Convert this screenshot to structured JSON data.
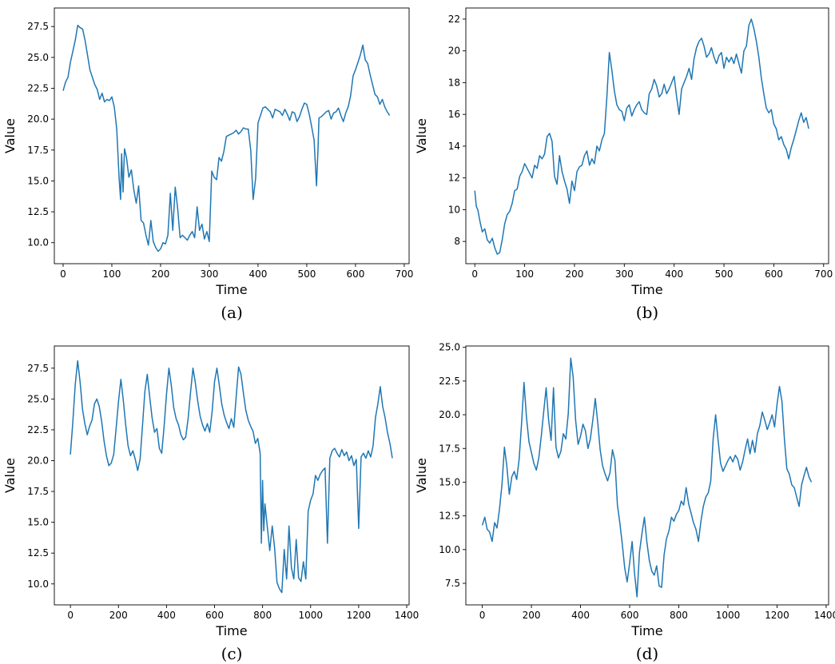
{
  "chart_data": [
    {
      "type": "line",
      "caption": "(a)",
      "xlabel": "Time",
      "ylabel": "Value",
      "xlim": [
        -18,
        710
      ],
      "ylim": [
        8.3,
        29.0
      ],
      "xticks": [
        0,
        100,
        200,
        300,
        400,
        500,
        600,
        700
      ],
      "yticks": [
        10.0,
        12.5,
        15.0,
        17.5,
        20.0,
        22.5,
        25.0,
        27.5
      ],
      "series_color": "#1f77b4",
      "x": [
        0,
        5,
        10,
        15,
        20,
        25,
        30,
        35,
        40,
        45,
        50,
        55,
        60,
        65,
        70,
        75,
        80,
        85,
        90,
        95,
        100,
        105,
        110,
        115,
        118,
        120,
        123,
        126,
        130,
        135,
        140,
        145,
        150,
        155,
        160,
        165,
        170,
        175,
        180,
        185,
        190,
        195,
        200,
        205,
        210,
        215,
        220,
        225,
        230,
        235,
        240,
        245,
        250,
        255,
        260,
        265,
        270,
        275,
        280,
        285,
        290,
        295,
        300,
        305,
        310,
        315,
        320,
        325,
        330,
        335,
        340,
        345,
        350,
        355,
        360,
        365,
        370,
        375,
        380,
        385,
        390,
        395,
        400,
        405,
        410,
        415,
        420,
        425,
        430,
        435,
        440,
        445,
        450,
        455,
        460,
        465,
        470,
        475,
        480,
        485,
        490,
        495,
        500,
        505,
        510,
        515,
        520,
        523,
        525,
        530,
        535,
        540,
        545,
        550,
        555,
        560,
        565,
        570,
        575,
        580,
        585,
        590,
        595,
        600,
        605,
        610,
        615,
        620,
        625,
        630,
        635,
        640,
        645,
        650,
        655,
        660,
        665,
        670
      ],
      "y": [
        22.3,
        23.0,
        23.4,
        24.6,
        25.5,
        26.4,
        27.6,
        27.4,
        27.3,
        26.4,
        25.2,
        24.0,
        23.4,
        22.8,
        22.4,
        21.6,
        22.1,
        21.4,
        21.6,
        21.5,
        21.8,
        21.0,
        19.2,
        15.2,
        13.5,
        17.2,
        14.1,
        17.6,
        16.9,
        15.3,
        15.9,
        14.3,
        13.2,
        14.6,
        11.8,
        11.6,
        10.6,
        9.8,
        11.8,
        10.1,
        9.6,
        9.3,
        9.5,
        10.0,
        9.9,
        10.6,
        14.0,
        11.0,
        14.5,
        12.8,
        10.4,
        10.6,
        10.4,
        10.2,
        10.6,
        10.9,
        10.4,
        12.9,
        11.0,
        11.5,
        10.3,
        10.9,
        10.1,
        15.8,
        15.3,
        15.1,
        16.9,
        16.6,
        17.4,
        18.6,
        18.7,
        18.8,
        18.9,
        19.1,
        18.8,
        19.0,
        19.3,
        19.2,
        19.2,
        17.5,
        13.5,
        15.2,
        19.7,
        20.3,
        20.9,
        21.0,
        20.8,
        20.6,
        20.1,
        20.8,
        20.7,
        20.6,
        20.3,
        20.8,
        20.4,
        19.9,
        20.6,
        20.5,
        19.8,
        20.2,
        20.8,
        21.3,
        21.2,
        20.4,
        19.4,
        18.3,
        14.6,
        17.6,
        20.1,
        20.2,
        20.4,
        20.6,
        20.7,
        20.0,
        20.5,
        20.6,
        20.9,
        20.3,
        19.8,
        20.5,
        21.0,
        21.9,
        23.5,
        24.0,
        24.6,
        25.2,
        26.0,
        24.8,
        24.5,
        23.6,
        22.8,
        22.0,
        21.8,
        21.2,
        21.6,
        21.0,
        20.6,
        20.3
      ]
    },
    {
      "type": "line",
      "caption": "(b)",
      "xlabel": "Time",
      "ylabel": "Value",
      "xlim": [
        -18,
        710
      ],
      "ylim": [
        6.6,
        22.7
      ],
      "xticks": [
        0,
        100,
        200,
        300,
        400,
        500,
        600,
        700
      ],
      "yticks": [
        8,
        10,
        12,
        14,
        16,
        18,
        20,
        22
      ],
      "series_color": "#1f77b4",
      "x": [
        0,
        3,
        6,
        10,
        15,
        20,
        25,
        30,
        35,
        40,
        45,
        50,
        55,
        60,
        65,
        70,
        75,
        80,
        85,
        90,
        95,
        100,
        105,
        110,
        115,
        120,
        125,
        130,
        135,
        140,
        145,
        150,
        155,
        160,
        165,
        170,
        175,
        180,
        185,
        190,
        195,
        200,
        205,
        210,
        215,
        220,
        225,
        230,
        235,
        240,
        245,
        250,
        255,
        260,
        265,
        270,
        275,
        280,
        285,
        290,
        295,
        300,
        305,
        310,
        315,
        320,
        325,
        330,
        335,
        340,
        345,
        350,
        355,
        360,
        365,
        370,
        375,
        380,
        385,
        390,
        395,
        400,
        405,
        410,
        415,
        420,
        425,
        430,
        435,
        440,
        445,
        450,
        455,
        460,
        465,
        470,
        475,
        480,
        485,
        490,
        495,
        500,
        505,
        510,
        515,
        520,
        525,
        530,
        535,
        540,
        545,
        550,
        555,
        560,
        565,
        570,
        575,
        580,
        585,
        590,
        595,
        600,
        605,
        610,
        615,
        620,
        625,
        630,
        635,
        640,
        645,
        650,
        655,
        660,
        665,
        670
      ],
      "y": [
        11.2,
        10.2,
        10.0,
        9.3,
        8.6,
        8.8,
        8.1,
        7.9,
        8.2,
        7.6,
        7.2,
        7.3,
        8.1,
        9.1,
        9.7,
        9.9,
        10.4,
        11.2,
        11.3,
        12.1,
        12.4,
        12.9,
        12.6,
        12.3,
        12.0,
        12.8,
        12.6,
        13.4,
        13.2,
        13.5,
        14.6,
        14.8,
        14.3,
        12.1,
        11.6,
        13.4,
        12.4,
        11.8,
        11.3,
        10.4,
        11.8,
        11.2,
        12.4,
        12.7,
        12.8,
        13.4,
        13.7,
        12.8,
        13.2,
        12.9,
        14.0,
        13.7,
        14.4,
        14.8,
        17.1,
        19.9,
        18.8,
        17.5,
        16.6,
        16.3,
        16.2,
        15.6,
        16.4,
        16.6,
        15.9,
        16.3,
        16.6,
        16.8,
        16.3,
        16.1,
        16.0,
        17.3,
        17.6,
        18.2,
        17.8,
        17.1,
        17.3,
        17.9,
        17.3,
        17.6,
        18.0,
        18.4,
        17.1,
        16.0,
        17.6,
        18.0,
        18.4,
        18.9,
        18.2,
        19.5,
        20.2,
        20.6,
        20.8,
        20.3,
        19.6,
        19.8,
        20.2,
        19.6,
        19.2,
        19.7,
        19.9,
        18.9,
        19.6,
        19.3,
        19.6,
        19.2,
        19.8,
        19.2,
        18.6,
        20.0,
        20.3,
        21.6,
        22.0,
        21.4,
        20.6,
        19.6,
        18.3,
        17.3,
        16.4,
        16.1,
        16.3,
        15.4,
        15.1,
        14.4,
        14.6,
        14.1,
        13.8,
        13.2,
        13.9,
        14.4,
        15.0,
        15.6,
        16.1,
        15.5,
        15.8,
        15.1
      ]
    },
    {
      "type": "line",
      "caption": "(c)",
      "xlabel": "Time",
      "ylabel": "Value",
      "xlim": [
        -67,
        1410
      ],
      "ylim": [
        8.3,
        29.3
      ],
      "xticks": [
        0,
        200,
        400,
        600,
        800,
        1000,
        1200,
        1400
      ],
      "yticks": [
        10.0,
        12.5,
        15.0,
        17.5,
        20.0,
        22.5,
        25.0,
        27.5
      ],
      "series_color": "#1f77b4",
      "x": [
        0,
        10,
        20,
        30,
        40,
        50,
        60,
        70,
        80,
        90,
        100,
        110,
        120,
        130,
        140,
        150,
        160,
        170,
        180,
        190,
        200,
        210,
        220,
        230,
        240,
        250,
        260,
        270,
        280,
        290,
        300,
        310,
        320,
        330,
        340,
        350,
        360,
        370,
        380,
        390,
        400,
        410,
        420,
        430,
        440,
        450,
        460,
        470,
        480,
        490,
        500,
        510,
        520,
        530,
        540,
        550,
        560,
        570,
        580,
        590,
        600,
        610,
        620,
        630,
        640,
        650,
        660,
        670,
        680,
        690,
        700,
        710,
        720,
        730,
        740,
        750,
        760,
        770,
        780,
        790,
        795,
        800,
        805,
        810,
        820,
        830,
        840,
        850,
        860,
        870,
        880,
        890,
        900,
        910,
        920,
        930,
        940,
        950,
        960,
        970,
        980,
        990,
        1000,
        1010,
        1020,
        1030,
        1040,
        1050,
        1060,
        1070,
        1080,
        1090,
        1100,
        1110,
        1120,
        1130,
        1140,
        1150,
        1160,
        1170,
        1180,
        1190,
        1200,
        1210,
        1220,
        1230,
        1240,
        1250,
        1260,
        1270,
        1280,
        1290,
        1300,
        1310,
        1320,
        1330,
        1340
      ],
      "y": [
        20.5,
        23.1,
        26.2,
        28.1,
        26.4,
        24.2,
        23.0,
        22.1,
        22.8,
        23.3,
        24.6,
        25.0,
        24.4,
        23.2,
        21.6,
        20.4,
        19.6,
        19.8,
        20.5,
        22.6,
        24.8,
        26.6,
        24.9,
        22.9,
        21.2,
        20.4,
        20.8,
        20.1,
        19.2,
        20.1,
        22.8,
        25.6,
        27.0,
        25.2,
        23.5,
        22.3,
        22.6,
        21.0,
        20.6,
        22.8,
        25.4,
        27.5,
        26.1,
        24.3,
        23.4,
        22.9,
        22.1,
        21.7,
        21.9,
        23.4,
        25.5,
        27.5,
        26.3,
        24.8,
        23.6,
        22.9,
        22.4,
        23.0,
        22.3,
        24.0,
        26.4,
        27.5,
        26.1,
        24.6,
        23.7,
        23.1,
        22.6,
        23.4,
        22.7,
        25.2,
        27.6,
        27.0,
        25.5,
        24.1,
        23.3,
        22.8,
        22.4,
        21.4,
        21.8,
        20.6,
        13.3,
        18.4,
        14.3,
        16.5,
        14.6,
        12.7,
        14.7,
        12.9,
        10.1,
        9.6,
        9.3,
        12.8,
        10.4,
        14.7,
        11.3,
        10.4,
        13.6,
        10.5,
        10.2,
        11.8,
        10.4,
        15.9,
        16.8,
        17.3,
        18.8,
        18.4,
        18.9,
        19.2,
        19.4,
        13.3,
        20.2,
        20.8,
        21.0,
        20.6,
        20.3,
        20.9,
        20.4,
        20.7,
        20.0,
        20.4,
        19.6,
        20.1,
        14.5,
        20.3,
        20.6,
        20.2,
        20.8,
        20.3,
        21.2,
        23.5,
        24.6,
        26.0,
        24.4,
        23.5,
        22.3,
        21.4,
        20.2
      ]
    },
    {
      "type": "line",
      "caption": "(d)",
      "xlabel": "Time",
      "ylabel": "Value",
      "xlim": [
        -67,
        1410
      ],
      "ylim": [
        5.9,
        25.1
      ],
      "xticks": [
        0,
        200,
        400,
        600,
        800,
        1000,
        1200,
        1400
      ],
      "yticks": [
        7.5,
        10.0,
        12.5,
        15.0,
        17.5,
        20.0,
        22.5,
        25.0
      ],
      "series_color": "#1f77b4",
      "x": [
        0,
        10,
        20,
        30,
        40,
        50,
        60,
        70,
        80,
        90,
        100,
        110,
        120,
        130,
        140,
        150,
        160,
        170,
        180,
        190,
        200,
        210,
        220,
        230,
        240,
        250,
        260,
        270,
        280,
        290,
        300,
        310,
        320,
        330,
        340,
        350,
        360,
        370,
        380,
        390,
        400,
        410,
        420,
        430,
        440,
        450,
        460,
        470,
        480,
        490,
        500,
        510,
        520,
        530,
        540,
        550,
        560,
        570,
        580,
        590,
        600,
        610,
        620,
        630,
        640,
        650,
        660,
        670,
        680,
        690,
        700,
        710,
        720,
        730,
        740,
        750,
        760,
        770,
        780,
        790,
        800,
        810,
        820,
        830,
        840,
        850,
        860,
        870,
        880,
        890,
        900,
        910,
        920,
        930,
        940,
        950,
        960,
        970,
        980,
        990,
        1000,
        1010,
        1020,
        1030,
        1040,
        1050,
        1060,
        1070,
        1080,
        1090,
        1100,
        1110,
        1120,
        1130,
        1140,
        1150,
        1160,
        1170,
        1180,
        1190,
        1200,
        1210,
        1220,
        1230,
        1240,
        1250,
        1260,
        1270,
        1280,
        1290,
        1300,
        1310,
        1320,
        1330,
        1340
      ],
      "y": [
        11.8,
        12.4,
        11.5,
        11.3,
        10.6,
        12.0,
        11.6,
        13.0,
        14.8,
        17.6,
        16.2,
        14.1,
        15.4,
        15.8,
        15.2,
        16.7,
        19.4,
        22.4,
        19.8,
        18.0,
        17.2,
        16.4,
        15.9,
        16.8,
        18.4,
        20.2,
        22.0,
        19.6,
        18.1,
        22.0,
        17.6,
        16.8,
        17.3,
        18.6,
        18.2,
        20.1,
        24.2,
        22.8,
        19.6,
        17.8,
        18.4,
        19.3,
        18.8,
        17.5,
        18.2,
        19.6,
        21.2,
        19.4,
        17.4,
        16.2,
        15.6,
        15.1,
        15.7,
        17.4,
        16.6,
        13.3,
        12.0,
        10.4,
        8.6,
        7.6,
        9.0,
        10.6,
        8.2,
        6.5,
        9.8,
        11.2,
        12.4,
        10.6,
        9.2,
        8.4,
        8.1,
        8.8,
        7.3,
        7.2,
        9.6,
        10.8,
        11.4,
        12.4,
        12.1,
        12.6,
        12.9,
        13.6,
        13.3,
        14.6,
        13.4,
        12.7,
        12.0,
        11.5,
        10.6,
        12.1,
        13.2,
        13.9,
        14.2,
        15.1,
        18.2,
        20.0,
        18.1,
        16.4,
        15.8,
        16.2,
        16.6,
        16.9,
        16.5,
        17.0,
        16.7,
        15.9,
        16.5,
        17.4,
        18.2,
        17.1,
        18.1,
        17.2,
        18.6,
        19.2,
        20.2,
        19.6,
        18.9,
        19.4,
        20.0,
        19.1,
        20.8,
        22.1,
        21.0,
        18.2,
        16.0,
        15.6,
        14.8,
        14.6,
        13.9,
        13.2,
        14.8,
        15.5,
        16.1,
        15.4,
        15.0
      ]
    }
  ]
}
